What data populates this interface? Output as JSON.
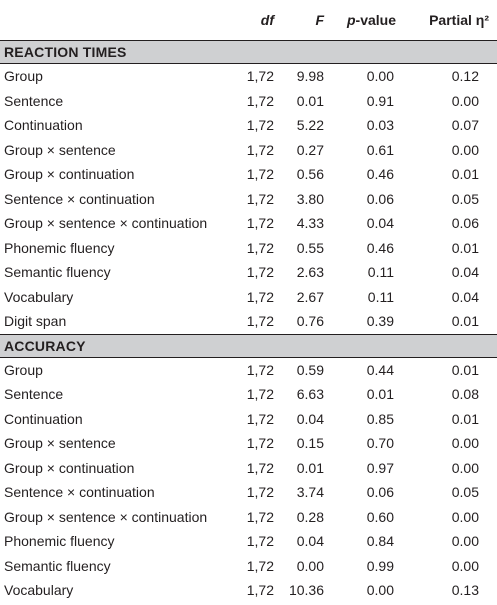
{
  "header": {
    "label": "",
    "df": "df",
    "f": "F",
    "p_italic": "p",
    "p_rest": "-value",
    "eta": "Partial η²"
  },
  "sections": [
    {
      "title": "REACTION TIMES",
      "rows": [
        {
          "label": "Group",
          "df": "1,72",
          "f": "9.98",
          "p": "0.00",
          "eta": "0.12"
        },
        {
          "label": "Sentence",
          "df": "1,72",
          "f": "0.01",
          "p": "0.91",
          "eta": "0.00"
        },
        {
          "label": "Continuation",
          "df": "1,72",
          "f": "5.22",
          "p": "0.03",
          "eta": "0.07"
        },
        {
          "label": "Group × sentence",
          "df": "1,72",
          "f": "0.27",
          "p": "0.61",
          "eta": "0.00"
        },
        {
          "label": "Group × continuation",
          "df": "1,72",
          "f": "0.56",
          "p": "0.46",
          "eta": "0.01"
        },
        {
          "label": "Sentence × continuation",
          "df": "1,72",
          "f": "3.80",
          "p": "0.06",
          "eta": "0.05"
        },
        {
          "label": "Group × sentence × continuation",
          "df": "1,72",
          "f": "4.33",
          "p": "0.04",
          "eta": "0.06"
        },
        {
          "label": "Phonemic fluency",
          "df": "1,72",
          "f": "0.55",
          "p": "0.46",
          "eta": "0.01"
        },
        {
          "label": "Semantic fluency",
          "df": "1,72",
          "f": "2.63",
          "p": "0.11",
          "eta": "0.04"
        },
        {
          "label": "Vocabulary",
          "df": "1,72",
          "f": "2.67",
          "p": "0.11",
          "eta": "0.04"
        },
        {
          "label": "Digit span",
          "df": "1,72",
          "f": "0.76",
          "p": "0.39",
          "eta": "0.01"
        }
      ]
    },
    {
      "title": "ACCURACY",
      "rows": [
        {
          "label": "Group",
          "df": "1,72",
          "f": "0.59",
          "p": "0.44",
          "eta": "0.01"
        },
        {
          "label": "Sentence",
          "df": "1,72",
          "f": "6.63",
          "p": "0.01",
          "eta": "0.08"
        },
        {
          "label": "Continuation",
          "df": "1,72",
          "f": "0.04",
          "p": "0.85",
          "eta": "0.01"
        },
        {
          "label": "Group × sentence",
          "df": "1,72",
          "f": "0.15",
          "p": "0.70",
          "eta": "0.00"
        },
        {
          "label": "Group × continuation",
          "df": "1,72",
          "f": "0.01",
          "p": "0.97",
          "eta": "0.00"
        },
        {
          "label": "Sentence × continuation",
          "df": "1,72",
          "f": "3.74",
          "p": "0.06",
          "eta": "0.05"
        },
        {
          "label": "Group × sentence × continuation",
          "df": "1,72",
          "f": "0.28",
          "p": "0.60",
          "eta": "0.00"
        },
        {
          "label": "Phonemic fluency",
          "df": "1,72",
          "f": "0.04",
          "p": "0.84",
          "eta": "0.00"
        },
        {
          "label": "Semantic fluency",
          "df": "1,72",
          "f": "0.00",
          "p": "0.99",
          "eta": "0.00"
        },
        {
          "label": "Vocabulary",
          "df": "1,72",
          "f": "10.36",
          "p": "0.00",
          "eta": "0.13"
        }
      ]
    }
  ]
}
